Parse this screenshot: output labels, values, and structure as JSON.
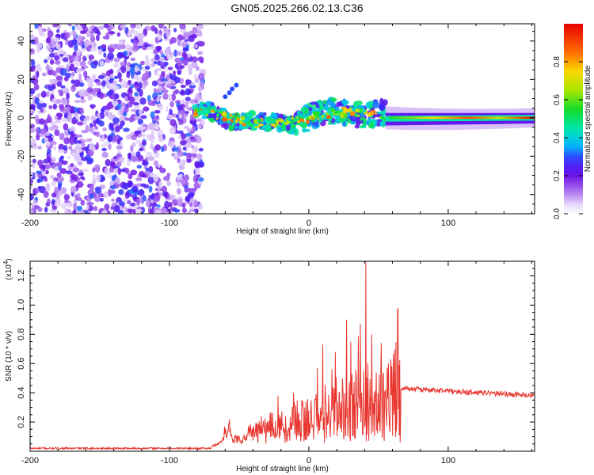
{
  "title": "GN05.2025.266.02.13.C36",
  "chart_data": [
    {
      "type": "heatmap",
      "xlabel": "Height of straight line (km)",
      "ylabel": "Frequency (Hz)",
      "xlim": [
        -200,
        162
      ],
      "ylim": [
        -50,
        49
      ],
      "xticks": [
        -200,
        -100,
        0,
        100
      ],
      "yticks": [
        -40,
        -20,
        0,
        20,
        40
      ],
      "colorbar": {
        "label": "Normalized spectral amplitude",
        "ticks": [
          0.0,
          0.2,
          0.4,
          0.6,
          0.8
        ],
        "range": [
          0,
          1
        ]
      },
      "regions": [
        {
          "name": "noise",
          "x_range": [
            -200,
            -80
          ],
          "freq_range": [
            -50,
            49
          ],
          "level_range": [
            0.0,
            0.15
          ]
        },
        {
          "name": "scattered signal",
          "x_range": [
            -82,
            55
          ],
          "freq_center": 0,
          "freq_spread": 8,
          "level_range": [
            0.05,
            0.9
          ]
        },
        {
          "name": "coherent signal",
          "x_range": [
            55,
            162
          ],
          "freq_center": -1,
          "freq_spread": 3,
          "level_range": [
            0.2,
            1.0
          ]
        }
      ]
    },
    {
      "type": "line",
      "xlabel": "Height of straight line (km)",
      "ylabel": "SNR (10 * v/v)",
      "yscale_label": "(x10",
      "yscale_exp": "4",
      "yscale_close": ")",
      "xlim": [
        -200,
        162
      ],
      "ylim": [
        0,
        1.3
      ],
      "xticks": [
        -200,
        -100,
        0,
        100
      ],
      "yticks": [
        0.2,
        0.4,
        0.6,
        0.8,
        1.0,
        1.2
      ],
      "color": "#e8362f",
      "series": [
        {
          "name": "SNR",
          "x_range": [
            -200,
            162
          ],
          "baseline": 0.02,
          "peak": {
            "x": 41,
            "y": 1.3
          },
          "plateau": {
            "x_range": [
              67,
              162
            ],
            "start": 0.43,
            "end": 0.38
          }
        }
      ]
    }
  ]
}
